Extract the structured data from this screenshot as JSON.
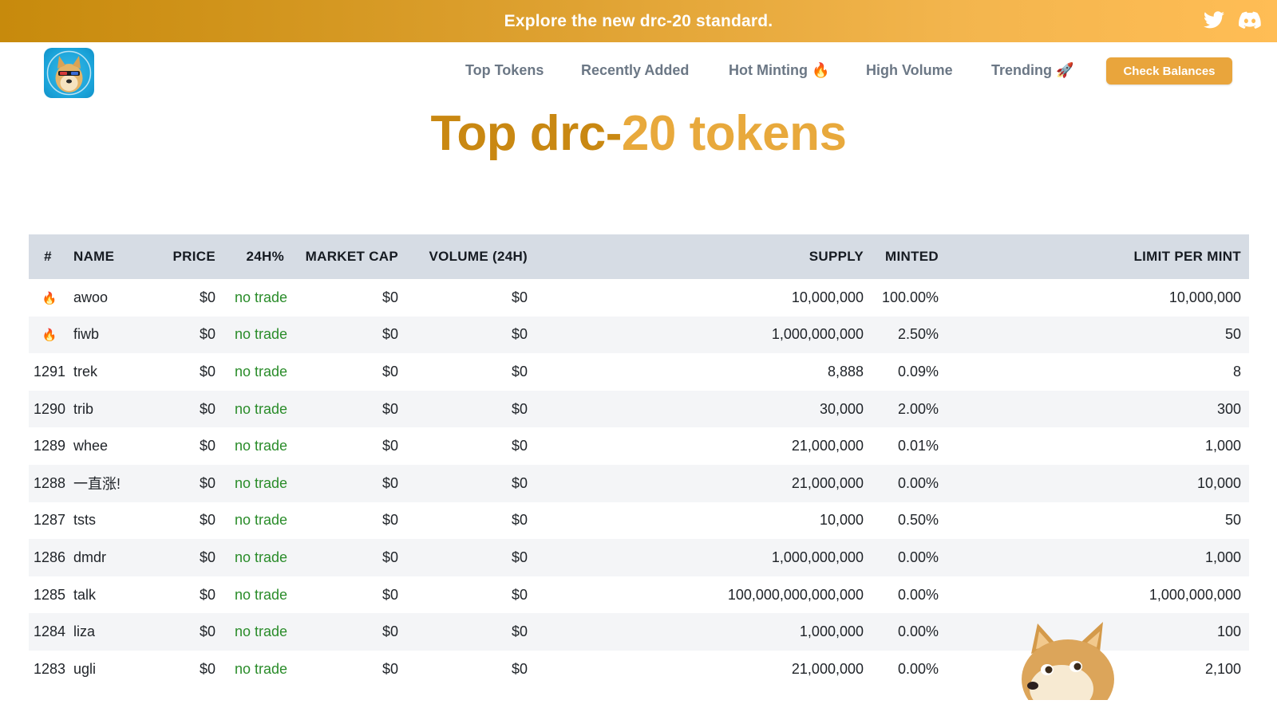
{
  "banner": {
    "text": "Explore the new drc-20 standard.",
    "icons": [
      "twitter-icon",
      "discord-icon"
    ]
  },
  "nav": {
    "items": [
      {
        "label": "Top Tokens"
      },
      {
        "label": "Recently Added"
      },
      {
        "label": "Hot Minting 🔥"
      },
      {
        "label": "High Volume"
      },
      {
        "label": "Trending 🚀"
      }
    ],
    "button": "Check Balances"
  },
  "title": {
    "part1": "Top drc-",
    "part2": "20 tokens"
  },
  "table": {
    "headers": [
      "#",
      "NAME",
      "PRICE",
      "24H%",
      "MARKET CAP",
      "VOLUME (24H)",
      "SUPPLY",
      "MINTED",
      "LIMIT PER MINT"
    ],
    "rows": [
      {
        "rank": "🔥",
        "name": "awoo",
        "price": "$0",
        "change": "no trade",
        "cap": "$0",
        "volume": "$0",
        "supply": "10,000,000",
        "minted": "100.00%",
        "limit": "10,000,000"
      },
      {
        "rank": "🔥",
        "name": "fiwb",
        "price": "$0",
        "change": "no trade",
        "cap": "$0",
        "volume": "$0",
        "supply": "1,000,000,000",
        "minted": "2.50%",
        "limit": "50"
      },
      {
        "rank": "1291",
        "name": "trek",
        "price": "$0",
        "change": "no trade",
        "cap": "$0",
        "volume": "$0",
        "supply": "8,888",
        "minted": "0.09%",
        "limit": "8"
      },
      {
        "rank": "1290",
        "name": "trib",
        "price": "$0",
        "change": "no trade",
        "cap": "$0",
        "volume": "$0",
        "supply": "30,000",
        "minted": "2.00%",
        "limit": "300"
      },
      {
        "rank": "1289",
        "name": "whee",
        "price": "$0",
        "change": "no trade",
        "cap": "$0",
        "volume": "$0",
        "supply": "21,000,000",
        "minted": "0.01%",
        "limit": "1,000"
      },
      {
        "rank": "1288",
        "name": "一直涨!",
        "price": "$0",
        "change": "no trade",
        "cap": "$0",
        "volume": "$0",
        "supply": "21,000,000",
        "minted": "0.00%",
        "limit": "10,000"
      },
      {
        "rank": "1287",
        "name": "tsts",
        "price": "$0",
        "change": "no trade",
        "cap": "$0",
        "volume": "$0",
        "supply": "10,000",
        "minted": "0.50%",
        "limit": "50"
      },
      {
        "rank": "1286",
        "name": "dmdr",
        "price": "$0",
        "change": "no trade",
        "cap": "$0",
        "volume": "$0",
        "supply": "1,000,000,000",
        "minted": "0.00%",
        "limit": "1,000"
      },
      {
        "rank": "1285",
        "name": "talk",
        "price": "$0",
        "change": "no trade",
        "cap": "$0",
        "volume": "$0",
        "supply": "100,000,000,000,000",
        "minted": "0.00%",
        "limit": "1,000,000,000"
      },
      {
        "rank": "1284",
        "name": "liza",
        "price": "$0",
        "change": "no trade",
        "cap": "$0",
        "volume": "$0",
        "supply": "1,000,000",
        "minted": "0.00%",
        "limit": "100"
      },
      {
        "rank": "1283",
        "name": "ugli",
        "price": "$0",
        "change": "no trade",
        "cap": "$0",
        "volume": "$0",
        "supply": "21,000,000",
        "minted": "0.00%",
        "limit": "2,100"
      }
    ]
  },
  "colors": {
    "accent": "#e9a53c",
    "title_dark": "#c98812",
    "title_light": "#e8a93c",
    "positive": "#2a8c2a",
    "header_bg": "#d6dce4"
  }
}
